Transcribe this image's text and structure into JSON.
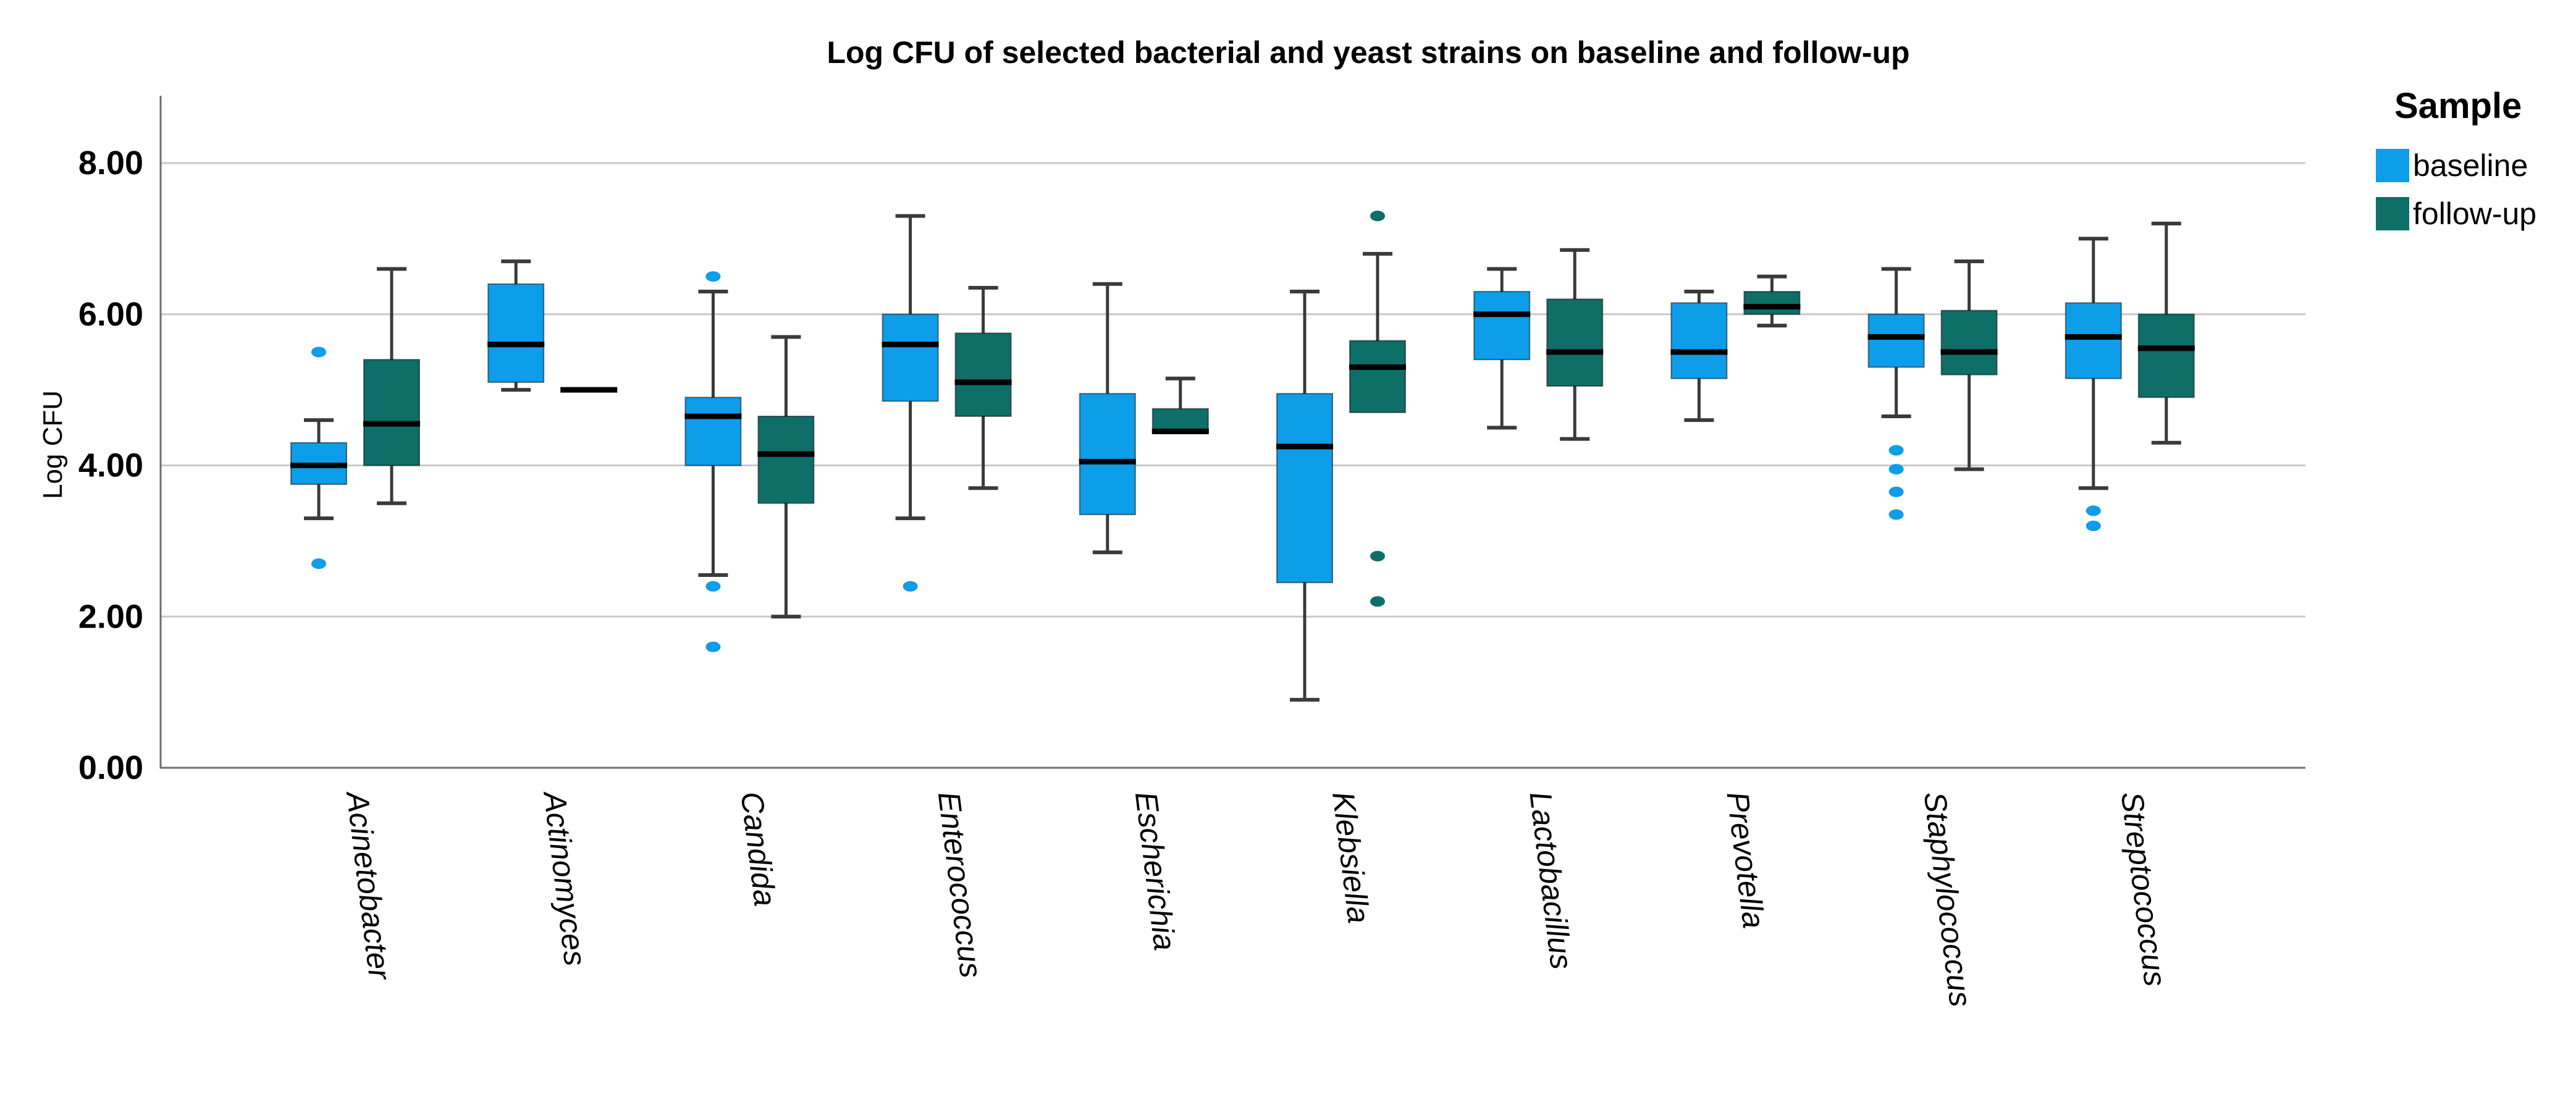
{
  "title": "Log CFU of selected bacterial and yeast strains on baseline and follow-up",
  "legend": {
    "title": "Sample",
    "entries": [
      {
        "label": "baseline",
        "color": "#0d9de9"
      },
      {
        "label": "follow-up",
        "color": "#0e6e68"
      }
    ]
  },
  "colors": {
    "baseline": "#0d9de9",
    "followup": "#0e6e68",
    "gridline": "#c9c9c9",
    "axis_line": "#6e6e6e",
    "whisker": "#3a3a3a",
    "median": "#000000",
    "text": "#000000"
  },
  "chart_data": {
    "type": "boxplot",
    "title": "Log CFU of selected bacterial and yeast strains on baseline and follow-up",
    "xlabel": "",
    "ylabel": "Log CFU",
    "ylim": [
      0,
      8
    ],
    "yticks": [
      0,
      2,
      4,
      6,
      8
    ],
    "ytick_labels": [
      "0.00",
      "2.00",
      "4.00",
      "6.00",
      "8.00"
    ],
    "grid": true,
    "legend_position": "right",
    "legend_title": "Sample",
    "categories": [
      "Acinetobacter",
      "Actinomyces",
      "Candida",
      "Enterococcus",
      "Escherichia",
      "Klebsiella",
      "Lactobacillus",
      "Prevotella",
      "Staphylococcus",
      "Streptococcus"
    ],
    "series": [
      {
        "name": "baseline",
        "color": "#0d9de9",
        "boxes": [
          {
            "whislo": 3.3,
            "q1": 3.75,
            "med": 4.0,
            "q3": 4.3,
            "whishi": 4.6,
            "outliers": [
              5.5,
              2.7
            ]
          },
          {
            "whislo": 5.0,
            "q1": 5.1,
            "med": 5.6,
            "q3": 6.4,
            "whishi": 6.7,
            "outliers": []
          },
          {
            "whislo": 2.55,
            "q1": 4.0,
            "med": 4.65,
            "q3": 4.9,
            "whishi": 6.3,
            "outliers": [
              6.5,
              2.4,
              1.6
            ]
          },
          {
            "whislo": 3.3,
            "q1": 4.85,
            "med": 5.6,
            "q3": 6.0,
            "whishi": 7.3,
            "outliers": [
              2.4
            ]
          },
          {
            "whislo": 2.85,
            "q1": 3.35,
            "med": 4.05,
            "q3": 4.95,
            "whishi": 6.4,
            "outliers": []
          },
          {
            "whislo": 0.9,
            "q1": 2.45,
            "med": 4.25,
            "q3": 4.95,
            "whishi": 6.3,
            "outliers": []
          },
          {
            "whislo": 4.5,
            "q1": 5.4,
            "med": 6.0,
            "q3": 6.3,
            "whishi": 6.6,
            "outliers": []
          },
          {
            "whislo": 4.6,
            "q1": 5.15,
            "med": 5.5,
            "q3": 6.15,
            "whishi": 6.3,
            "outliers": []
          },
          {
            "whislo": 4.65,
            "q1": 5.3,
            "med": 5.7,
            "q3": 6.0,
            "whishi": 6.6,
            "outliers": [
              4.2,
              3.95,
              3.65,
              3.35
            ]
          },
          {
            "whislo": 3.7,
            "q1": 5.15,
            "med": 5.7,
            "q3": 6.15,
            "whishi": 7.0,
            "outliers": [
              3.4,
              3.2
            ]
          }
        ]
      },
      {
        "name": "follow-up",
        "color": "#0e6e68",
        "boxes": [
          {
            "whislo": 3.5,
            "q1": 4.0,
            "med": 4.55,
            "q3": 5.4,
            "whishi": 6.6,
            "outliers": []
          },
          {
            "whislo": 5.0,
            "q1": 5.0,
            "med": 5.0,
            "q3": 5.0,
            "whishi": 5.0,
            "outliers": []
          },
          {
            "whislo": 2.0,
            "q1": 3.5,
            "med": 4.15,
            "q3": 4.65,
            "whishi": 5.7,
            "outliers": []
          },
          {
            "whislo": 3.7,
            "q1": 4.65,
            "med": 5.1,
            "q3": 5.75,
            "whishi": 6.35,
            "outliers": []
          },
          {
            "whislo": 4.45,
            "q1": 4.45,
            "med": 4.45,
            "q3": 4.75,
            "whishi": 5.15,
            "outliers": []
          },
          {
            "whislo": 4.7,
            "q1": 4.7,
            "med": 5.3,
            "q3": 5.65,
            "whishi": 6.8,
            "outliers": [
              7.3,
              2.8,
              2.2
            ]
          },
          {
            "whislo": 4.35,
            "q1": 5.05,
            "med": 5.5,
            "q3": 6.2,
            "whishi": 6.85,
            "outliers": []
          },
          {
            "whislo": 5.85,
            "q1": 6.0,
            "med": 6.1,
            "q3": 6.3,
            "whishi": 6.5,
            "outliers": []
          },
          {
            "whislo": 3.95,
            "q1": 5.2,
            "med": 5.5,
            "q3": 6.05,
            "whishi": 6.7,
            "outliers": []
          },
          {
            "whislo": 4.3,
            "q1": 4.9,
            "med": 5.55,
            "q3": 6.0,
            "whishi": 7.2,
            "outliers": []
          }
        ]
      }
    ]
  }
}
